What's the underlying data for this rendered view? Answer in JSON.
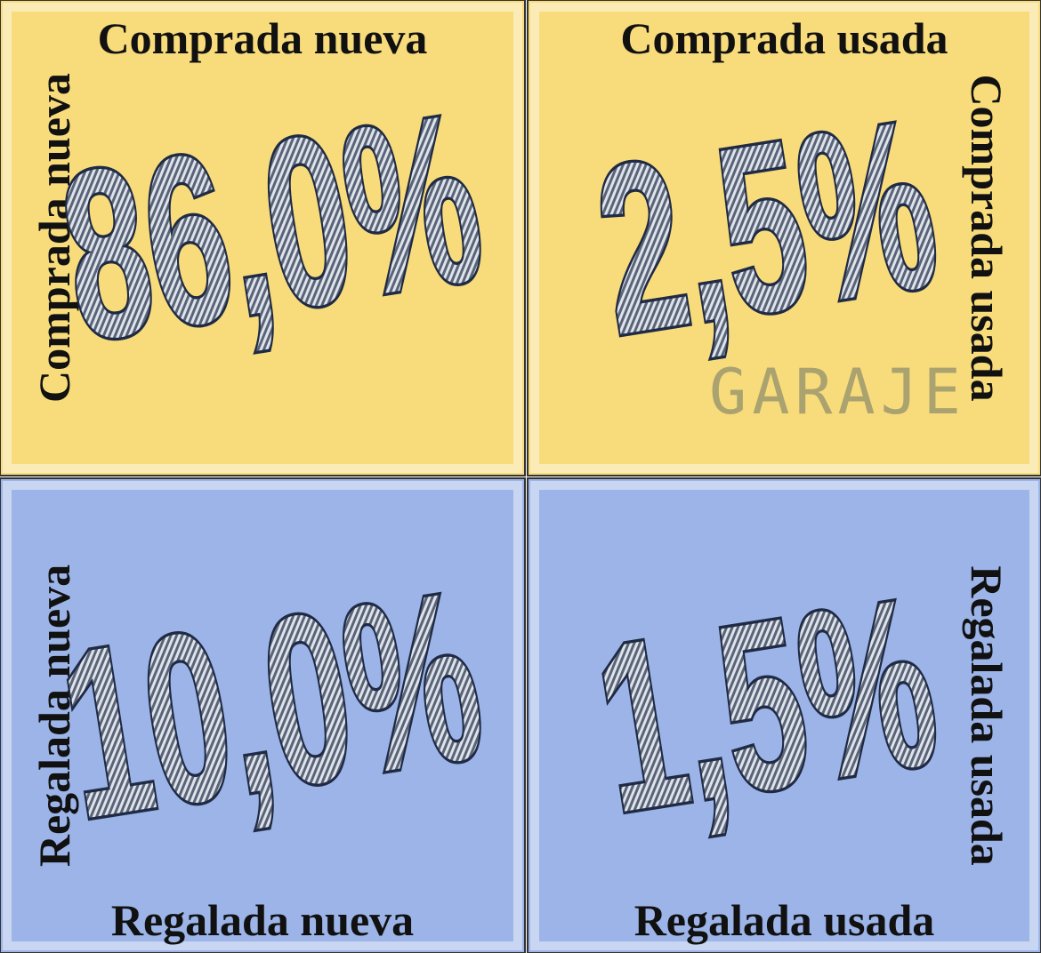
{
  "quadrants": [
    {
      "title": "Comprada nueva",
      "side_label": "Comprada nueva",
      "value": "86,0%"
    },
    {
      "title": "Comprada usada",
      "side_label": "Comprada usada",
      "value": "2,5%",
      "illustration_text": "GARAJE"
    },
    {
      "title": "Regalada nueva",
      "side_label": "Regalada nueva",
      "value": "10,0%"
    },
    {
      "title": "Regalada usada",
      "side_label": "Regalada usada",
      "value": "1,5%"
    }
  ]
}
